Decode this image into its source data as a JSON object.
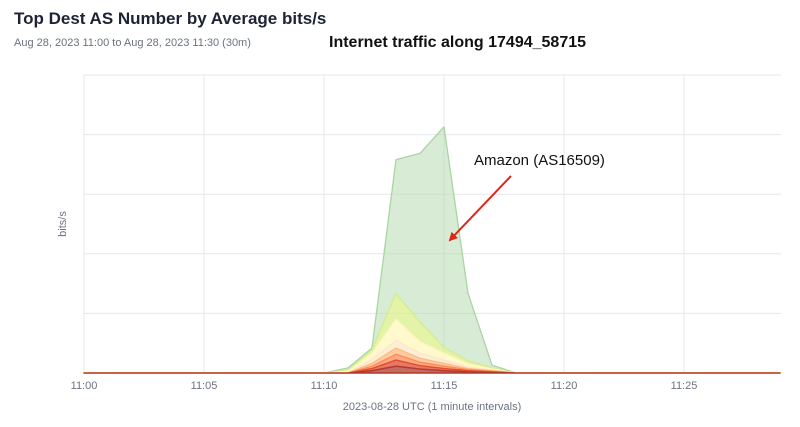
{
  "panel": {
    "title": "Top Dest AS Number by Average bits/s",
    "subtitle": "Aug 28, 2023 11:00 to Aug 28, 2023 11:30 (30m)",
    "overlay_title": "Internet traffic along 17494_58715"
  },
  "chart_data": {
    "type": "area",
    "stacked": true,
    "title": "Internet traffic along 17494_58715",
    "xlabel": "2023-08-28 UTC (1 minute intervals)",
    "ylabel": "bits/s",
    "x": [
      "11:00",
      "11:01",
      "11:02",
      "11:03",
      "11:04",
      "11:05",
      "11:06",
      "11:07",
      "11:08",
      "11:09",
      "11:10",
      "11:11",
      "11:12",
      "11:13",
      "11:14",
      "11:15",
      "11:16",
      "11:17",
      "11:18",
      "11:19",
      "11:20",
      "11:21",
      "11:22",
      "11:23",
      "11:24",
      "11:25",
      "11:26",
      "11:27",
      "11:28",
      "11:29"
    ],
    "x_ticks": [
      "11:00",
      "11:05",
      "11:10",
      "11:15",
      "11:20",
      "11:25"
    ],
    "y_ticks_shown": false,
    "ylim": [
      0,
      5
    ],
    "grid": true,
    "legend": "none",
    "series": [
      {
        "color": "#b03a2e",
        "values": [
          0,
          0,
          0,
          0,
          0,
          0,
          0,
          0,
          0,
          0,
          0,
          0,
          0.04,
          0.12,
          0.07,
          0.04,
          0.02,
          0.01,
          0,
          0,
          0,
          0,
          0,
          0,
          0,
          0,
          0,
          0,
          0,
          0
        ]
      },
      {
        "color": "#e34a33",
        "values": [
          0,
          0,
          0,
          0,
          0,
          0,
          0,
          0,
          0,
          0,
          0,
          0,
          0.04,
          0.11,
          0.06,
          0.04,
          0.02,
          0.01,
          0,
          0,
          0,
          0,
          0,
          0,
          0,
          0,
          0,
          0,
          0,
          0
        ]
      },
      {
        "color": "#fc8d59",
        "values": [
          0,
          0,
          0,
          0,
          0,
          0,
          0,
          0,
          0,
          0,
          0,
          0,
          0.04,
          0.1,
          0.06,
          0.04,
          0.02,
          0.01,
          0,
          0,
          0,
          0,
          0,
          0,
          0,
          0,
          0,
          0,
          0,
          0
        ]
      },
      {
        "color": "#fdbb84",
        "values": [
          0,
          0,
          0,
          0,
          0,
          0,
          0,
          0,
          0,
          0,
          0,
          0,
          0.05,
          0.11,
          0.07,
          0.05,
          0.02,
          0.01,
          0,
          0,
          0,
          0,
          0,
          0,
          0,
          0,
          0,
          0,
          0,
          0
        ]
      },
      {
        "color": "#fee8c8",
        "values": [
          0,
          0,
          0,
          0,
          0,
          0,
          0,
          0,
          0,
          0,
          0,
          0.01,
          0.07,
          0.14,
          0.09,
          0.06,
          0.03,
          0.01,
          0,
          0,
          0,
          0,
          0,
          0,
          0,
          0,
          0,
          0,
          0,
          0
        ]
      },
      {
        "color": "#fff7bc",
        "values": [
          0,
          0,
          0,
          0,
          0,
          0,
          0,
          0,
          0,
          0,
          0,
          0.02,
          0.11,
          0.37,
          0.2,
          0.12,
          0.05,
          0.02,
          0,
          0,
          0,
          0,
          0,
          0,
          0,
          0,
          0,
          0,
          0,
          0
        ]
      },
      {
        "color": "#d9ef8b",
        "values": [
          0,
          0,
          0,
          0,
          0,
          0,
          0,
          0,
          0,
          0,
          0,
          0.02,
          0.06,
          0.45,
          0.35,
          0.1,
          0.05,
          0.02,
          0,
          0,
          0,
          0,
          0,
          0,
          0,
          0,
          0,
          0,
          0,
          0
        ]
      },
      {
        "name": "Amazon (AS16509)",
        "color": "#a8d5a2",
        "values": [
          0,
          0,
          0,
          0,
          0,
          0,
          0,
          0,
          0,
          0,
          0,
          0.04,
          0.03,
          2.37,
          2.98,
          3.9,
          1.2,
          0.05,
          0,
          0,
          0,
          0,
          0,
          0,
          0,
          0,
          0,
          0,
          0,
          0
        ]
      }
    ],
    "annotations": [
      {
        "text": "Amazon (AS16509)",
        "arrow_color": "#e0241b",
        "target": {
          "x": "11:15",
          "y": 2.35
        }
      }
    ]
  }
}
